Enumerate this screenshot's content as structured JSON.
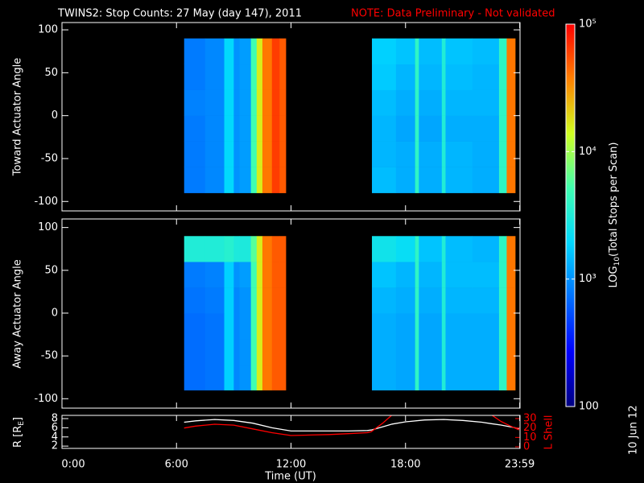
{
  "chart_data": [
    {
      "type": "heatmap",
      "title": "TWINS2: Stop Counts: 27 May (day 147), 2011",
      "note": "NOTE: Data Preliminary - Not validated",
      "ylabel": "Toward Actuator Angle",
      "xlim": [
        0,
        24
      ],
      "ylim": [
        -111,
        108.5
      ],
      "yticks": [
        -100,
        -50,
        0,
        50,
        100
      ],
      "x": [
        6.4,
        7.5,
        8.5,
        9.0,
        9.3,
        9.9,
        10.2,
        10.5,
        11.0,
        11.4,
        11.73,
        16.24,
        17.5,
        18.5,
        18.7,
        19.9,
        20.1,
        21.5,
        22.9,
        23.3,
        23.75
      ],
      "y": [
        -90,
        -60,
        -30,
        0,
        30,
        60,
        90
      ],
      "values": [
        [
          800,
          900,
          2000,
          1000,
          1100,
          5000,
          16000,
          40000,
          63000,
          50000,
          null,
          1500,
          1300,
          4000,
          1300,
          3200,
          1400,
          1300,
          4000,
          40000
        ],
        [
          800,
          900,
          2000,
          1000,
          1100,
          5000,
          16000,
          40000,
          63000,
          50000,
          null,
          1400,
          1300,
          4000,
          1300,
          3200,
          1400,
          1300,
          4000,
          40000
        ],
        [
          800,
          900,
          2000,
          1000,
          1100,
          5000,
          16000,
          40000,
          63000,
          50000,
          null,
          1400,
          1200,
          4000,
          1200,
          3200,
          1300,
          1300,
          4000,
          40000
        ],
        [
          850,
          900,
          2000,
          1000,
          1100,
          5000,
          16000,
          40000,
          63000,
          50000,
          null,
          1500,
          1300,
          4000,
          1300,
          3200,
          1400,
          1400,
          4000,
          40000
        ],
        [
          800,
          900,
          2000,
          1000,
          1100,
          5000,
          16000,
          40000,
          63000,
          50000,
          null,
          1700,
          1400,
          4000,
          1400,
          3200,
          1500,
          1400,
          4000,
          40000
        ],
        [
          800,
          900,
          2000,
          1000,
          1100,
          5000,
          16000,
          40000,
          63000,
          50000,
          null,
          1800,
          1600,
          4000,
          1500,
          3200,
          1600,
          1500,
          4000,
          40000
        ]
      ]
    },
    {
      "type": "heatmap",
      "ylabel": "Away Actuator Angle",
      "xlim": [
        0,
        24
      ],
      "ylim": [
        -111,
        110
      ],
      "yticks": [
        -100,
        -50,
        0,
        50,
        100
      ],
      "x": [
        6.4,
        7.5,
        8.5,
        9.0,
        9.3,
        9.9,
        10.2,
        10.5,
        11.0,
        11.4,
        11.73,
        16.24,
        17.5,
        18.5,
        18.7,
        19.9,
        20.1,
        21.5,
        22.9,
        23.3,
        23.75
      ],
      "y": [
        -90,
        -60,
        -30,
        0,
        30,
        60,
        90
      ],
      "values": [
        [
          700,
          750,
          1800,
          900,
          1000,
          5000,
          16000,
          40000,
          50000,
          50000,
          null,
          1300,
          1200,
          4000,
          1200,
          3200,
          1300,
          1300,
          4000,
          40000
        ],
        [
          700,
          750,
          1800,
          900,
          1000,
          5000,
          16000,
          40000,
          50000,
          50000,
          null,
          1300,
          1200,
          4000,
          1200,
          3200,
          1300,
          1300,
          4000,
          40000
        ],
        [
          700,
          750,
          1800,
          900,
          1000,
          5000,
          16000,
          40000,
          50000,
          50000,
          null,
          1300,
          1200,
          4000,
          1200,
          3200,
          1300,
          1300,
          4000,
          40000
        ],
        [
          750,
          800,
          1800,
          900,
          1000,
          5000,
          16000,
          40000,
          50000,
          50000,
          null,
          1400,
          1300,
          4000,
          1300,
          3200,
          1400,
          1400,
          4000,
          40000
        ],
        [
          800,
          850,
          1800,
          1000,
          1100,
          5000,
          16000,
          40000,
          50000,
          50000,
          null,
          1600,
          1400,
          4000,
          1400,
          3200,
          1500,
          1500,
          4000,
          40000
        ],
        [
          3200,
          3200,
          3500,
          3000,
          3000,
          6000,
          16000,
          40000,
          50000,
          50000,
          null,
          2500,
          2200,
          4000,
          1600,
          3200,
          1500,
          1400,
          4000,
          40000
        ]
      ]
    },
    {
      "type": "line",
      "xlabel": "Time (UT)",
      "ylabel": {
        "text": "R [R",
        "sub": "E",
        "end": "]"
      },
      "y2label": "L Shell",
      "xlim": [
        0,
        24
      ],
      "xticks": [
        {
          "value": 0,
          "label": "0:00"
        },
        {
          "value": 6,
          "label": "6:00"
        },
        {
          "value": 12,
          "label": "12:00"
        },
        {
          "value": 18,
          "label": "18:00"
        },
        {
          "value": 23.983,
          "label": "23:59"
        }
      ],
      "ylim": [
        1.5,
        8.7
      ],
      "yticks": [
        2,
        4,
        6,
        8
      ],
      "y2lim": [
        -1.7,
        33.4
      ],
      "y2ticks": [
        0,
        10,
        20,
        30
      ],
      "x": [
        6.4,
        7,
        8,
        9,
        10,
        11,
        12,
        13,
        14,
        15,
        16,
        16.2,
        16.8,
        17.3,
        18,
        19,
        20,
        21,
        22,
        22.5,
        23,
        23.5,
        23.95
      ],
      "series": [
        {
          "color": "#ffffff",
          "values": [
            7.2,
            7.5,
            7.8,
            7.6,
            7.0,
            6.0,
            5.3,
            5.3,
            5.3,
            5.3,
            5.4,
            5.5,
            6.2,
            6.8,
            7.3,
            7.7,
            7.8,
            7.6,
            7.2,
            6.9,
            6.6,
            6.2,
            5.8
          ]
        },
        {
          "color": "#ff0000",
          "axis": "y2",
          "values": [
            20,
            22,
            24,
            23,
            19,
            15,
            12,
            12.5,
            13,
            14,
            15,
            16,
            25,
            34,
            null,
            null,
            null,
            null,
            null,
            34,
            27,
            22,
            18
          ]
        }
      ]
    }
  ],
  "colorbar": {
    "label": {
      "text": "LOG",
      "sub": "10",
      "end": "(Total Stops per Scan)"
    },
    "scale": "log",
    "lim": [
      100,
      100000
    ],
    "ticks": [
      {
        "value": 100000,
        "label": "10⁵"
      },
      {
        "value": 10000,
        "label": "10⁴"
      },
      {
        "value": 1000,
        "label": "10³"
      },
      100
    ],
    "colormap": [
      "#000080",
      "#0000ff",
      "#0070ff",
      "#00d8ff",
      "#40ffb0",
      "#d0ff20",
      "#ff8000",
      "#ff0000"
    ]
  },
  "date_stamp": "10 Jun 12"
}
